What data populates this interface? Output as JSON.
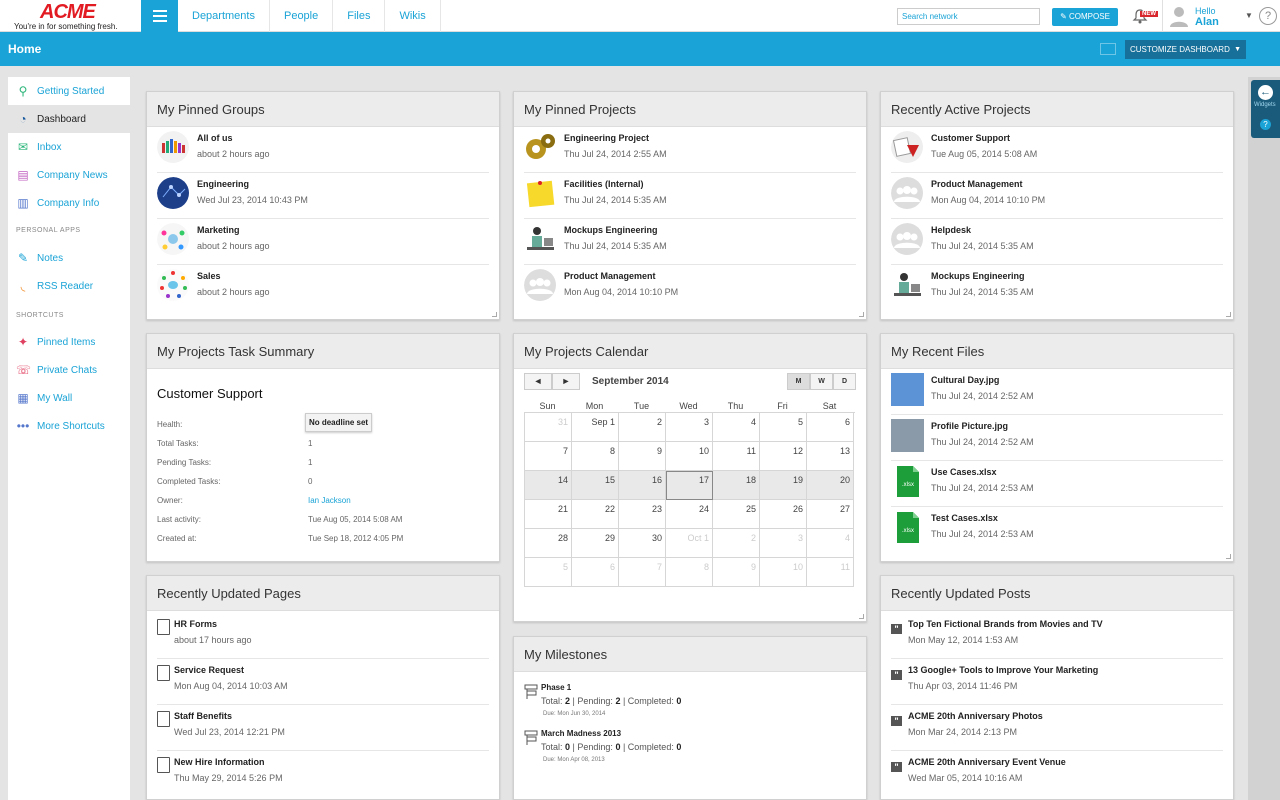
{
  "brand": {
    "name": "ACME",
    "tagline": "You're in for something fresh."
  },
  "nav": {
    "links": [
      "Departments",
      "People",
      "Files",
      "Wikis"
    ]
  },
  "search": {
    "placeholder": "Search network"
  },
  "compose": {
    "label": "COMPOSE"
  },
  "notifications": {
    "badge": "NEW"
  },
  "user": {
    "greeting": "Hello",
    "name": "Alan"
  },
  "page": {
    "title": "Home",
    "customize_label": "CUSTOMIZE DASHBOARD"
  },
  "widgets_tab": {
    "label": "Widgets"
  },
  "sidebar": {
    "items": [
      {
        "label": "Getting Started",
        "icon": "rocket-icon"
      },
      {
        "label": "Dashboard",
        "icon": "dashboard-icon"
      },
      {
        "label": "Inbox",
        "icon": "envelope-icon"
      },
      {
        "label": "Company News",
        "icon": "newspaper-icon"
      },
      {
        "label": "Company Info",
        "icon": "building-icon"
      }
    ],
    "personal_heading": "PERSONAL APPS",
    "personal": [
      {
        "label": "Notes",
        "icon": "pencil-icon"
      },
      {
        "label": "RSS Reader",
        "icon": "rss-icon"
      }
    ],
    "shortcuts_heading": "SHORTCUTS",
    "shortcuts": [
      {
        "label": "Pinned Items",
        "icon": "pin-icon"
      },
      {
        "label": "Private Chats",
        "icon": "chat-icon"
      },
      {
        "label": "My Wall",
        "icon": "wall-icon"
      },
      {
        "label": "More Shortcuts",
        "icon": "more-icon"
      }
    ]
  },
  "pinned_groups": {
    "title": "My Pinned Groups",
    "items": [
      {
        "name": "All of us",
        "time": "about 2 hours ago"
      },
      {
        "name": "Engineering",
        "time": "Wed Jul 23, 2014 10:43 PM"
      },
      {
        "name": "Marketing",
        "time": "about 2 hours ago"
      },
      {
        "name": "Sales",
        "time": "about 2 hours ago"
      }
    ]
  },
  "pinned_projects": {
    "title": "My Pinned Projects",
    "items": [
      {
        "name": "Engineering Project",
        "time": "Thu Jul 24, 2014 2:55 AM"
      },
      {
        "name": "Facilities (Internal)",
        "time": "Thu Jul 24, 2014 5:35 AM"
      },
      {
        "name": "Mockups Engineering",
        "time": "Thu Jul 24, 2014 5:35 AM"
      },
      {
        "name": "Product Management",
        "time": "Mon Aug 04, 2014 10:10 PM"
      }
    ]
  },
  "active_projects": {
    "title": "Recently Active Projects",
    "items": [
      {
        "name": "Customer Support",
        "time": "Tue Aug 05, 2014 5:08 AM"
      },
      {
        "name": "Product Management",
        "time": "Mon Aug 04, 2014 10:10 PM"
      },
      {
        "name": "Helpdesk",
        "time": "Thu Jul 24, 2014 5:35 AM"
      },
      {
        "name": "Mockups Engineering",
        "time": "Thu Jul 24, 2014 5:35 AM"
      }
    ]
  },
  "task_summary": {
    "title": "My Projects Task Summary",
    "project": "Customer Support",
    "health_label": "Health:",
    "health_value": "No deadline set",
    "rows": [
      {
        "label": "Total Tasks:",
        "value": "1"
      },
      {
        "label": "Pending Tasks:",
        "value": "1"
      },
      {
        "label": "Completed Tasks:",
        "value": "0"
      },
      {
        "label": "Owner:",
        "value": "Ian Jackson"
      },
      {
        "label": "Last activity:",
        "value": "Tue Aug 05, 2014 5:08 AM"
      },
      {
        "label": "Created at:",
        "value": "Tue Sep 18, 2012 4:05 PM"
      }
    ]
  },
  "calendar": {
    "title": "My Projects Calendar",
    "prev": "◄",
    "next": "►",
    "month": "September 2014",
    "views": [
      "M",
      "W",
      "D"
    ],
    "days": [
      "Sun",
      "Mon",
      "Tue",
      "Wed",
      "Thu",
      "Fri",
      "Sat"
    ],
    "weeks": [
      [
        "31",
        "Sep 1",
        "2",
        "3",
        "4",
        "5",
        "6"
      ],
      [
        "7",
        "8",
        "9",
        "10",
        "11",
        "12",
        "13"
      ],
      [
        "14",
        "15",
        "16",
        "17",
        "18",
        "19",
        "20"
      ],
      [
        "21",
        "22",
        "23",
        "24",
        "25",
        "26",
        "27"
      ],
      [
        "28",
        "29",
        "30",
        "Oct 1",
        "2",
        "3",
        "4"
      ],
      [
        "5",
        "6",
        "7",
        "8",
        "9",
        "10",
        "11"
      ]
    ]
  },
  "recent_files": {
    "title": "My Recent Files",
    "items": [
      {
        "name": "Cultural Day.jpg",
        "time": "Thu Jul 24, 2014 2:52 AM",
        "kind": "image",
        "color": "#5b93d6"
      },
      {
        "name": "Profile Picture.jpg",
        "time": "Thu Jul 24, 2014 2:52 AM",
        "kind": "image",
        "color": "#8a9aa8"
      },
      {
        "name": "Use Cases.xlsx",
        "time": "Thu Jul 24, 2014 2:53 AM",
        "kind": "xlsx",
        "color": "#1e9e3a"
      },
      {
        "name": "Test Cases.xlsx",
        "time": "Thu Jul 24, 2014 2:53 AM",
        "kind": "xlsx",
        "color": "#1e9e3a"
      }
    ],
    "xlsx_label": ".xlsx"
  },
  "updated_pages": {
    "title": "Recently Updated Pages",
    "items": [
      {
        "name": "HR Forms",
        "time": "about 17 hours ago"
      },
      {
        "name": "Service Request",
        "time": "Mon Aug 04, 2014 10:03 AM"
      },
      {
        "name": "Staff Benefits",
        "time": "Wed Jul 23, 2014 12:21 PM"
      },
      {
        "name": "New Hire Information",
        "time": "Thu May 29, 2014 5:26 PM"
      }
    ]
  },
  "milestones": {
    "title": "My Milestones",
    "items": [
      {
        "name": "Phase 1",
        "total": "2",
        "pending": "2",
        "completed": "0",
        "due": "Due: Mon Jun 30, 2014"
      },
      {
        "name": "March Madness 2013",
        "total": "0",
        "pending": "0",
        "completed": "0",
        "due": "Due: Mon Apr 08, 2013"
      }
    ],
    "total_label": "Total:",
    "pending_label": "Pending:",
    "completed_label": "Completed:"
  },
  "updated_posts": {
    "title": "Recently Updated Posts",
    "items": [
      {
        "name": "Top Ten Fictional Brands from Movies and TV",
        "time": "Mon May 12, 2014 1:53 AM"
      },
      {
        "name": "13 Google+ Tools to Improve Your Marketing",
        "time": "Thu Apr 03, 2014 11:46 PM"
      },
      {
        "name": "ACME 20th Anniversary Photos",
        "time": "Mon Mar 24, 2014 2:13 PM"
      },
      {
        "name": "ACME 20th Anniversary Event Venue",
        "time": "Wed Mar 05, 2014 10:16 AM"
      }
    ]
  },
  "colors": {
    "accent": "#1aa3d6",
    "brand_red": "#e21b23",
    "dark_button": "#17709a"
  }
}
